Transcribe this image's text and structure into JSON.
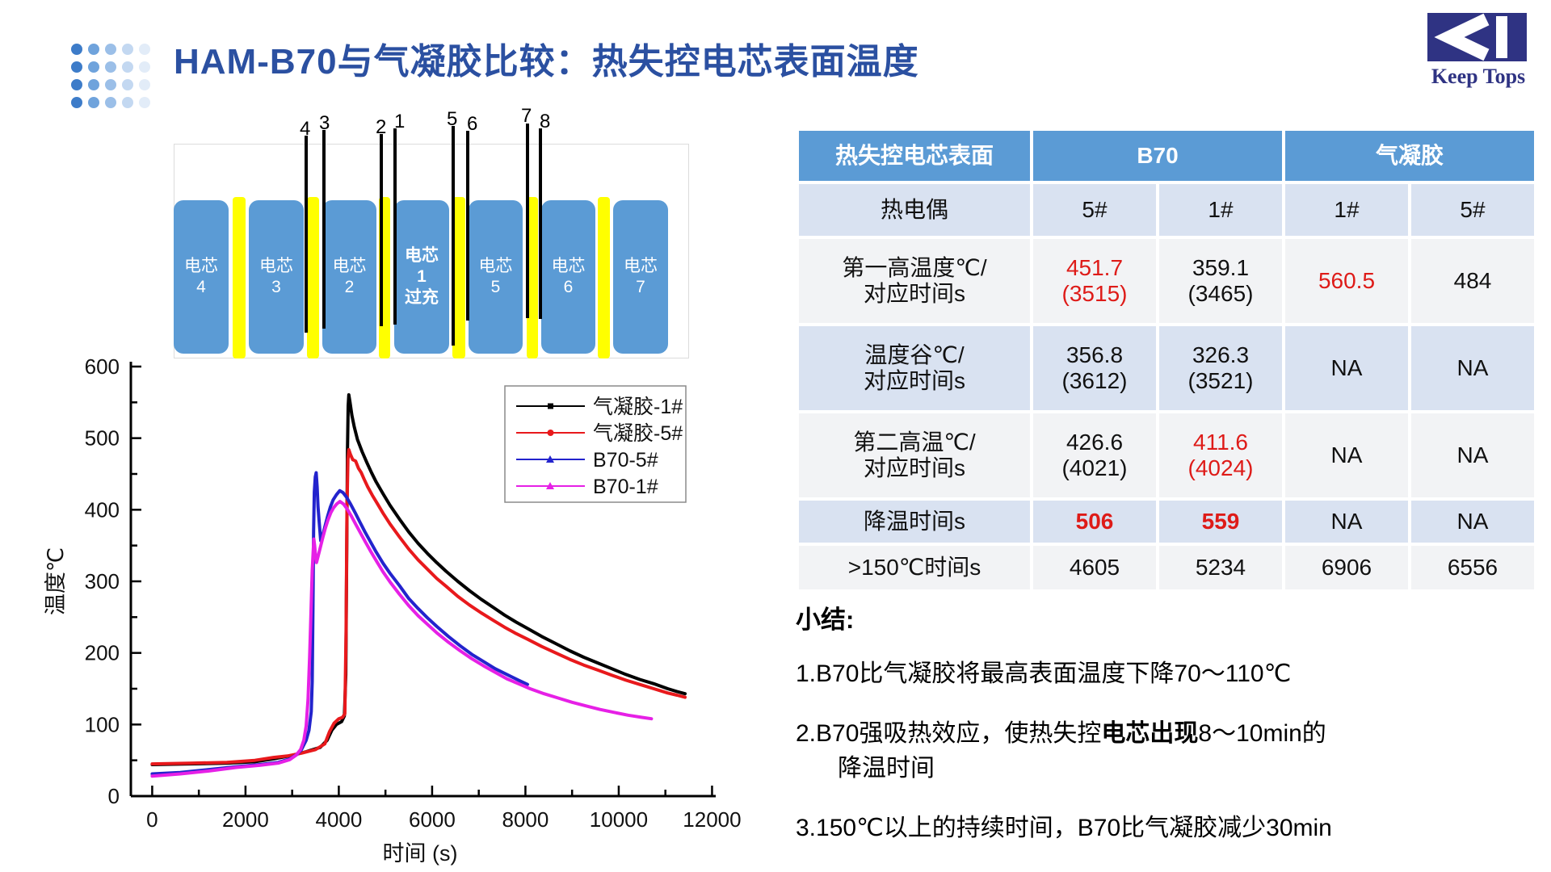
{
  "header": {
    "title": "HAM-B70与气凝胶比较：热失控电芯表面温度",
    "title_color": "#2B50A1",
    "logo_text": "Keep Tops",
    "logo_color": "#2F3383",
    "dot_colors": [
      "#3D7CC9",
      "#6FA3DC",
      "#9BBFE8",
      "#C3D8F1",
      "#E2ECF8"
    ]
  },
  "diagram": {
    "cell_color": "#5B9BD5",
    "separator_color": "#FFFF00",
    "cells": [
      {
        "lines": [
          "电芯",
          "4"
        ],
        "bold": false
      },
      {
        "lines": [
          "电芯",
          "3"
        ],
        "bold": false
      },
      {
        "lines": [
          "电芯",
          "2"
        ],
        "bold": false
      },
      {
        "lines": [
          "电芯",
          "1",
          "过充"
        ],
        "bold": true
      },
      {
        "lines": [
          "电芯",
          "5"
        ],
        "bold": false
      },
      {
        "lines": [
          "电芯",
          "6"
        ],
        "bold": false
      },
      {
        "lines": [
          "电芯",
          "7"
        ],
        "bold": false
      }
    ],
    "probes": [
      "4",
      "3",
      "2",
      "1",
      "5",
      "6",
      "7",
      "8"
    ]
  },
  "table": {
    "header_col": "热失控电芯表面",
    "group1": "B70",
    "group2": "气凝胶",
    "rows": [
      {
        "label": [
          "热电偶"
        ],
        "shade": "blue",
        "cells": [
          {
            "main": "5#"
          },
          {
            "main": "1#"
          },
          {
            "main": "1#"
          },
          {
            "main": "5#"
          }
        ]
      },
      {
        "label": [
          "第一高温度℃/",
          "对应时间s"
        ],
        "shade": "light",
        "cells": [
          {
            "main": "451.7",
            "sub": "(3515)",
            "red": true
          },
          {
            "main": "359.1",
            "sub": "(3465)"
          },
          {
            "main": "560.5",
            "red": true
          },
          {
            "main": "484"
          }
        ]
      },
      {
        "label": [
          "温度谷℃/",
          "对应时间s"
        ],
        "shade": "blue",
        "cells": [
          {
            "main": "356.8",
            "sub": "(3612)"
          },
          {
            "main": "326.3",
            "sub": "(3521)"
          },
          {
            "main": "NA"
          },
          {
            "main": "NA"
          }
        ]
      },
      {
        "label": [
          "第二高温℃/",
          "对应时间s"
        ],
        "shade": "light",
        "cells": [
          {
            "main": "426.6",
            "sub": "(4021)"
          },
          {
            "main": "411.6",
            "sub": "(4024)",
            "red": true
          },
          {
            "main": "NA"
          },
          {
            "main": "NA"
          }
        ]
      },
      {
        "label": [
          "降温时间s"
        ],
        "shade": "blue",
        "cells": [
          {
            "main": "506",
            "red": true,
            "bold": true
          },
          {
            "main": "559",
            "red": true,
            "bold": true
          },
          {
            "main": "NA"
          },
          {
            "main": "NA"
          }
        ]
      },
      {
        "label": [
          ">150℃时间s"
        ],
        "shade": "light",
        "cells": [
          {
            "main": "4605"
          },
          {
            "main": "5234"
          },
          {
            "main": "6906"
          },
          {
            "main": "6556"
          }
        ]
      }
    ]
  },
  "summary": {
    "heading": "小结:",
    "items": [
      {
        "lines": [
          [
            {
              "t": "1.B70比气凝胶将最高表面温度下降70～110℃"
            }
          ]
        ]
      },
      {
        "lines": [
          [
            {
              "t": "2.B70强吸热效应，使热失控"
            },
            {
              "t": "电芯出现",
              "b": true
            },
            {
              "t": "8～10min的"
            }
          ],
          [
            {
              "t": "降温时间",
              "indent": true
            }
          ]
        ]
      },
      {
        "lines": [
          [
            {
              "t": "3.150℃以上的持续时间，B70比气凝胶减少30min"
            }
          ]
        ]
      }
    ]
  },
  "chart_data": {
    "type": "line",
    "title": "",
    "xlabel": "时间 (s)",
    "ylabel": "温度℃",
    "xlim": [
      0,
      12000
    ],
    "ylim": [
      0,
      600
    ],
    "x_major_step": 2000,
    "x_minor_step": 1000,
    "y_major_step": 100,
    "y_minor_step": 50,
    "grid": false,
    "legend_position": "upper-right-inside",
    "series": [
      {
        "name": "气凝胶-1#",
        "color": "#000000",
        "marker": "square",
        "points": [
          [
            0,
            44
          ],
          [
            800,
            45
          ],
          [
            1600,
            46
          ],
          [
            2200,
            48
          ],
          [
            2600,
            52
          ],
          [
            3000,
            57
          ],
          [
            3300,
            62
          ],
          [
            3600,
            68
          ],
          [
            3750,
            78
          ],
          [
            3850,
            92
          ],
          [
            3950,
            100
          ],
          [
            4060,
            104
          ],
          [
            4120,
            112
          ],
          [
            4150,
            170
          ],
          [
            4170,
            340
          ],
          [
            4185,
            480
          ],
          [
            4200,
            545
          ],
          [
            4215,
            560.5
          ],
          [
            4240,
            550
          ],
          [
            4280,
            532
          ],
          [
            4330,
            516
          ],
          [
            4400,
            498
          ],
          [
            4500,
            481
          ],
          [
            4600,
            466
          ],
          [
            4700,
            452
          ],
          [
            4800,
            439
          ],
          [
            4950,
            422
          ],
          [
            5100,
            406
          ],
          [
            5300,
            387
          ],
          [
            5500,
            369
          ],
          [
            5700,
            353
          ],
          [
            5900,
            339
          ],
          [
            6100,
            326
          ],
          [
            6300,
            314
          ],
          [
            6550,
            300
          ],
          [
            6800,
            287
          ],
          [
            7050,
            275
          ],
          [
            7300,
            264
          ],
          [
            7550,
            253
          ],
          [
            7800,
            243
          ],
          [
            8050,
            234
          ],
          [
            8350,
            223
          ],
          [
            8650,
            213
          ],
          [
            8950,
            203
          ],
          [
            9250,
            194
          ],
          [
            9550,
            186
          ],
          [
            9850,
            178
          ],
          [
            10150,
            170
          ],
          [
            10450,
            163
          ],
          [
            10750,
            157
          ],
          [
            11050,
            150
          ],
          [
            11250,
            146
          ],
          [
            11420,
            143
          ]
        ]
      },
      {
        "name": "气凝胶-5#",
        "color": "#E8191C",
        "marker": "circle",
        "points": [
          [
            0,
            45
          ],
          [
            800,
            46
          ],
          [
            1600,
            47
          ],
          [
            2200,
            50
          ],
          [
            2600,
            54
          ],
          [
            2900,
            56
          ],
          [
            3200,
            60
          ],
          [
            3500,
            65
          ],
          [
            3700,
            73
          ],
          [
            3800,
            90
          ],
          [
            3900,
            102
          ],
          [
            4000,
            108
          ],
          [
            4080,
            110
          ],
          [
            4130,
            115
          ],
          [
            4155,
            230
          ],
          [
            4175,
            400
          ],
          [
            4195,
            470
          ],
          [
            4215,
            484
          ],
          [
            4250,
            477
          ],
          [
            4300,
            470
          ],
          [
            4360,
            468
          ],
          [
            4420,
            458
          ],
          [
            4480,
            452
          ],
          [
            4540,
            443
          ],
          [
            4620,
            432
          ],
          [
            4720,
            420
          ],
          [
            4830,
            408
          ],
          [
            4950,
            395
          ],
          [
            5100,
            380
          ],
          [
            5300,
            362
          ],
          [
            5500,
            345
          ],
          [
            5700,
            330
          ],
          [
            5900,
            317
          ],
          [
            6100,
            304
          ],
          [
            6300,
            293
          ],
          [
            6550,
            279
          ],
          [
            6800,
            267
          ],
          [
            7050,
            256
          ],
          [
            7300,
            246
          ],
          [
            7550,
            236
          ],
          [
            7800,
            227
          ],
          [
            8050,
            219
          ],
          [
            8350,
            209
          ],
          [
            8650,
            200
          ],
          [
            8950,
            191
          ],
          [
            9250,
            183
          ],
          [
            9550,
            176
          ],
          [
            9850,
            169
          ],
          [
            10150,
            162
          ],
          [
            10450,
            156
          ],
          [
            10750,
            150
          ],
          [
            11050,
            144
          ],
          [
            11250,
            141
          ],
          [
            11420,
            138
          ]
        ]
      },
      {
        "name": "B70-5#",
        "color": "#2323CD",
        "marker": "triangle",
        "points": [
          [
            0,
            31
          ],
          [
            600,
            33
          ],
          [
            1200,
            37
          ],
          [
            1800,
            41
          ],
          [
            2300,
            44
          ],
          [
            2700,
            47
          ],
          [
            2950,
            52
          ],
          [
            3100,
            58
          ],
          [
            3200,
            65
          ],
          [
            3300,
            78
          ],
          [
            3360,
            92
          ],
          [
            3410,
            118
          ],
          [
            3430,
            160
          ],
          [
            3445,
            260
          ],
          [
            3460,
            370
          ],
          [
            3475,
            425
          ],
          [
            3495,
            446
          ],
          [
            3515,
            451.7
          ],
          [
            3535,
            432
          ],
          [
            3555,
            404
          ],
          [
            3580,
            382
          ],
          [
            3612,
            356.8
          ],
          [
            3650,
            363
          ],
          [
            3700,
            376
          ],
          [
            3760,
            391
          ],
          [
            3820,
            404
          ],
          [
            3880,
            414
          ],
          [
            3950,
            421
          ],
          [
            4021,
            426.6
          ],
          [
            4090,
            424
          ],
          [
            4160,
            418
          ],
          [
            4250,
            408
          ],
          [
            4350,
            396
          ],
          [
            4450,
            383
          ],
          [
            4560,
            369
          ],
          [
            4680,
            355
          ],
          [
            4800,
            341
          ],
          [
            4950,
            325
          ],
          [
            5100,
            311
          ],
          [
            5300,
            294
          ],
          [
            5500,
            276
          ],
          [
            5700,
            262
          ],
          [
            5900,
            249
          ],
          [
            6100,
            237
          ],
          [
            6350,
            223
          ],
          [
            6600,
            210
          ],
          [
            6850,
            198
          ],
          [
            7100,
            188
          ],
          [
            7350,
            178
          ],
          [
            7600,
            170
          ],
          [
            7850,
            162
          ],
          [
            8045,
            156
          ]
        ]
      },
      {
        "name": "B70-1#",
        "color": "#E620E6",
        "marker": "triangle",
        "points": [
          [
            0,
            28
          ],
          [
            600,
            31
          ],
          [
            1200,
            35
          ],
          [
            1800,
            40
          ],
          [
            2300,
            43
          ],
          [
            2700,
            46
          ],
          [
            2950,
            51
          ],
          [
            3080,
            57
          ],
          [
            3180,
            65
          ],
          [
            3250,
            78
          ],
          [
            3300,
            98
          ],
          [
            3340,
            135
          ],
          [
            3375,
            195
          ],
          [
            3405,
            262
          ],
          [
            3430,
            315
          ],
          [
            3450,
            342
          ],
          [
            3465,
            359.1
          ],
          [
            3482,
            350
          ],
          [
            3500,
            337
          ],
          [
            3521,
            326.3
          ],
          [
            3560,
            336
          ],
          [
            3610,
            349
          ],
          [
            3660,
            362
          ],
          [
            3710,
            374
          ],
          [
            3770,
            386
          ],
          [
            3830,
            396
          ],
          [
            3890,
            403
          ],
          [
            3955,
            408
          ],
          [
            4024,
            411.6
          ],
          [
            4100,
            408
          ],
          [
            4180,
            401
          ],
          [
            4270,
            391
          ],
          [
            4360,
            380
          ],
          [
            4460,
            368
          ],
          [
            4570,
            355
          ],
          [
            4690,
            341
          ],
          [
            4810,
            328
          ],
          [
            4950,
            313
          ],
          [
            5100,
            299
          ],
          [
            5300,
            282
          ],
          [
            5500,
            266
          ],
          [
            5700,
            252
          ],
          [
            5900,
            240
          ],
          [
            6100,
            228
          ],
          [
            6350,
            215
          ],
          [
            6600,
            203
          ],
          [
            6850,
            192
          ],
          [
            7100,
            182
          ],
          [
            7350,
            173
          ],
          [
            7600,
            164
          ],
          [
            7850,
            157
          ],
          [
            8100,
            150
          ],
          [
            8400,
            143
          ],
          [
            8700,
            137
          ],
          [
            9000,
            131
          ],
          [
            9300,
            126
          ],
          [
            9600,
            121
          ],
          [
            9900,
            117
          ],
          [
            10200,
            113
          ],
          [
            10500,
            110
          ],
          [
            10700,
            108
          ]
        ]
      }
    ]
  }
}
